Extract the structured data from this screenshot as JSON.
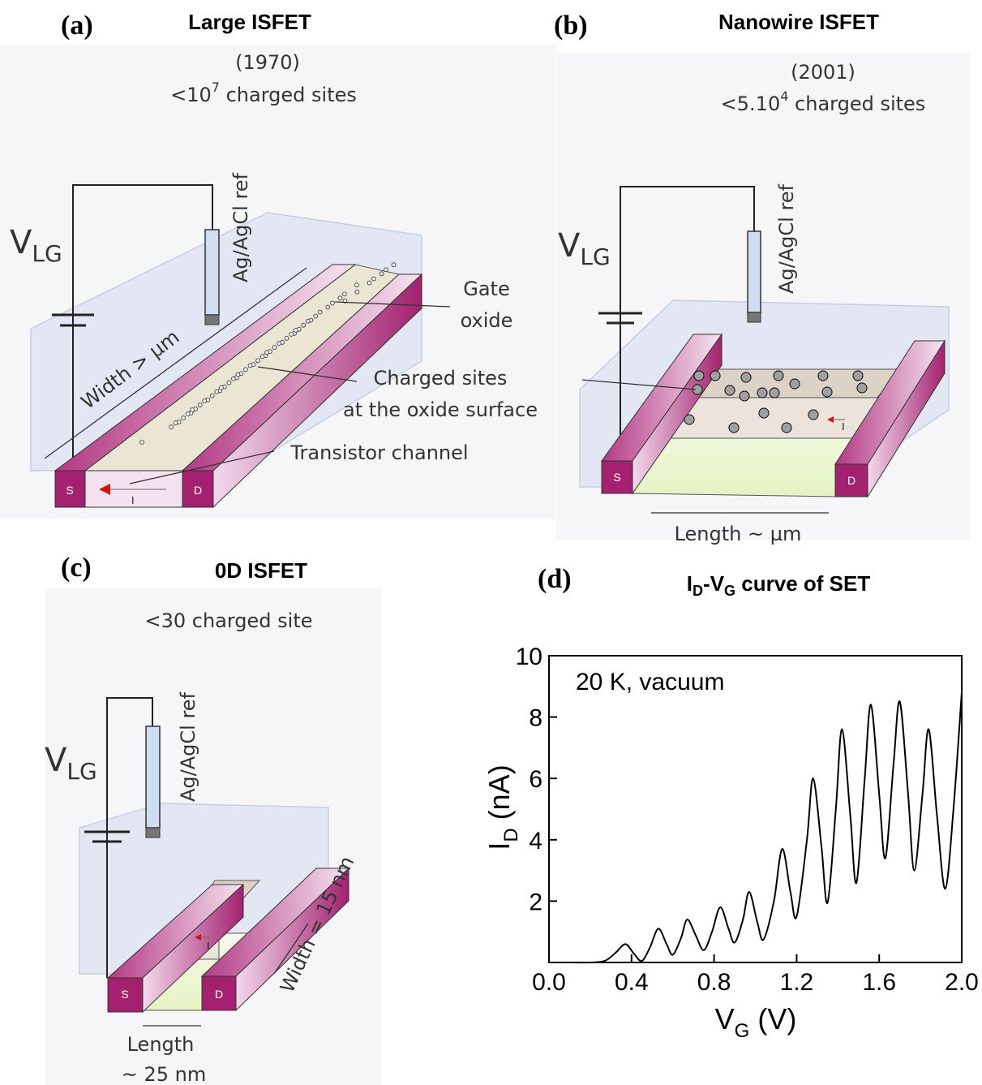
{
  "panel_a": {
    "label": "(a)",
    "title": "Large ISFET",
    "year": "(1970)",
    "sites": [
      "<10",
      "7",
      " charged sites"
    ],
    "voltage": [
      "V",
      "LG"
    ],
    "reference": "Ag/AgCl ref",
    "width": "Width > µm",
    "gate_oxide": [
      "Gate",
      "oxide"
    ],
    "charged_sites": [
      "Charged sites",
      "at the oxide surface"
    ],
    "channel": "Transistor channel",
    "source": "S",
    "drain": "D",
    "current": "I"
  },
  "panel_b": {
    "label": "(b)",
    "title": "Nanowire ISFET",
    "year": "(2001)",
    "sites": [
      "<5.10",
      "4",
      " charged sites"
    ],
    "voltage": [
      "V",
      "LG"
    ],
    "reference": "Ag/AgCl ref",
    "source": "S",
    "drain": "D",
    "current": "I",
    "length": "Length ~ µm"
  },
  "panel_c": {
    "label": "(c)",
    "title": "0D ISFET",
    "sites": "<30 charged site",
    "voltage": [
      "V",
      "LG"
    ],
    "reference": "Ag/AgCl ref",
    "source": "S",
    "drain": "D",
    "current": "I",
    "width": "Width = 15 nm",
    "length": [
      "Length",
      "~ 25 nm"
    ]
  },
  "chart_data": {
    "type": "line",
    "panel_label": "(d)",
    "title": [
      "I",
      "D",
      "-V",
      "G",
      " curve of SET"
    ],
    "x_label": [
      "V",
      "G",
      " (V)"
    ],
    "y_label": [
      "I",
      "D",
      " (nA)"
    ],
    "annotation": "20 K, vacuum",
    "color": "#000000",
    "xlim": [
      0,
      2
    ],
    "ylim": [
      0,
      10
    ],
    "xticks": [
      {
        "value": 0,
        "label": "0.0"
      },
      0.4,
      0.8,
      1.2,
      1.6,
      {
        "value": 2,
        "label": "2.0"
      }
    ],
    "yticks": [
      2,
      4,
      6,
      8,
      10
    ],
    "x": [
      0,
      0.1,
      0.2,
      0.27,
      0.32,
      0.37,
      0.41,
      0.45,
      0.49,
      0.53,
      0.57,
      0.6,
      0.64,
      0.67,
      0.71,
      0.75,
      0.79,
      0.83,
      0.87,
      0.9,
      0.94,
      0.97,
      1.01,
      1.04,
      1.09,
      1.13,
      1.17,
      1.2,
      1.25,
      1.28,
      1.32,
      1.35,
      1.39,
      1.42,
      1.46,
      1.49,
      1.53,
      1.56,
      1.6,
      1.63,
      1.67,
      1.7,
      1.74,
      1.77,
      1.81,
      1.84,
      1.88,
      1.92,
      1.96,
      2.0
    ],
    "values": [
      0,
      0,
      0,
      0.05,
      0.3,
      0.6,
      0.3,
      0.05,
      0.5,
      1.1,
      0.6,
      0.25,
      0.8,
      1.4,
      0.9,
      0.4,
      1.0,
      1.8,
      1.1,
      0.65,
      1.4,
      2.3,
      1.3,
      0.75,
      2.0,
      3.7,
      2.3,
      1.5,
      4.0,
      6.0,
      3.8,
      1.95,
      5.0,
      7.6,
      4.8,
      2.6,
      6.0,
      8.4,
      5.5,
      3.4,
      6.5,
      8.5,
      5.5,
      3.0,
      5.5,
      7.6,
      4.8,
      2.4,
      5.0,
      8.8
    ]
  }
}
